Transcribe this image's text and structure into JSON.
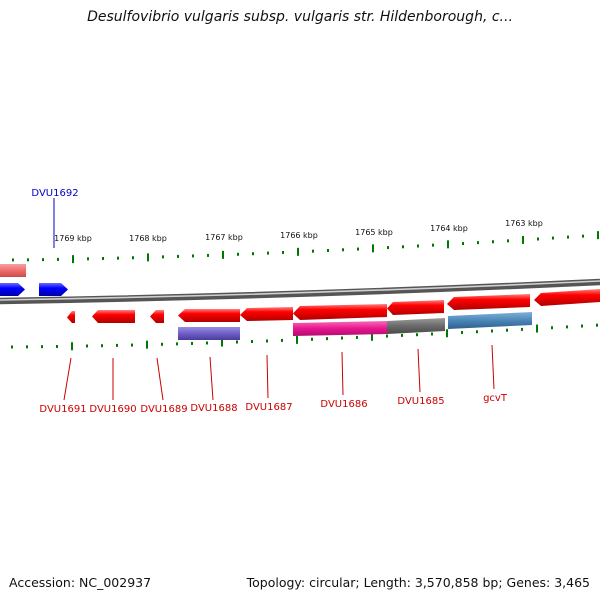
{
  "title": "Desulfovibrio vulgaris subsp. vulgaris str. Hildenborough, c...",
  "footer": {
    "accession": "Accession: NC_002937",
    "summary": "Topology: circular; Length: 3,570,858 bp; Genes: 3,465"
  },
  "scale_labels": [
    "1769 kbp",
    "1768 kbp",
    "1767 kbp",
    "1766 kbp",
    "1765 kbp",
    "1764 kbp",
    "1763 kbp"
  ],
  "gene_labels": {
    "top": [
      "DVU1692"
    ],
    "bottom": [
      "DVU1691",
      "DVU1690",
      "DVU1689",
      "DVU1688",
      "DVU1687",
      "DVU1686",
      "DVU1685",
      "gcvT"
    ]
  },
  "colors": {
    "forward_gene": "#0000ff",
    "reverse_gene": "#ff0000",
    "forward_label": "#0000cc",
    "reverse_label": "#cc0000",
    "tick": "#007700",
    "backbone": "#808080",
    "feature_purple": "#6f5fc8",
    "feature_pink": "#e8168f",
    "feature_gray": "#6a6a6a",
    "feature_steel": "#4a86b8",
    "top_left_feature": "#ef6b6b"
  }
}
